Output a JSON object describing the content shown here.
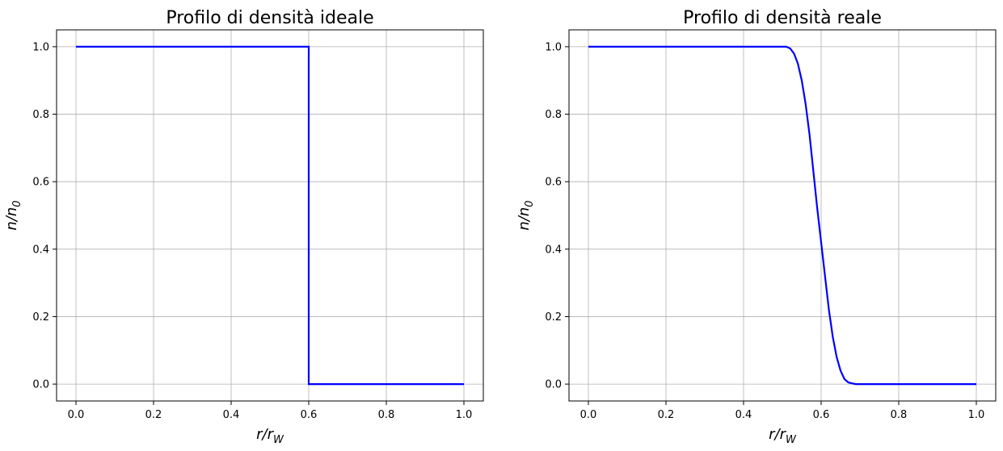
{
  "chart_data": [
    {
      "type": "line",
      "title": "Profilo di densità ideale",
      "xlabel": {
        "base": "r/r",
        "sub": "W"
      },
      "ylabel": {
        "base": "n/n",
        "sub": "0"
      },
      "xlim": [
        -0.05,
        1.05
      ],
      "ylim": [
        -0.05,
        1.05
      ],
      "xticks": [
        0.0,
        0.2,
        0.4,
        0.6,
        0.8,
        1.0
      ],
      "yticks": [
        0.0,
        0.2,
        0.4,
        0.6,
        0.8,
        1.0
      ],
      "xtick_labels": [
        "0.0",
        "0.2",
        "0.4",
        "0.6",
        "0.8",
        "1.0"
      ],
      "ytick_labels": [
        "0.0",
        "0.2",
        "0.4",
        "0.6",
        "0.8",
        "1.0"
      ],
      "grid": true,
      "color": "#0000ff",
      "series": [
        {
          "x": [
            0.0,
            0.6,
            0.6,
            1.0
          ],
          "y": [
            1.0,
            1.0,
            0.0,
            0.0
          ]
        }
      ]
    },
    {
      "type": "line",
      "title": "Profilo di densità reale",
      "xlabel": {
        "base": "r/r",
        "sub": "W"
      },
      "ylabel": {
        "base": "n/n",
        "sub": "0"
      },
      "xlim": [
        -0.05,
        1.05
      ],
      "ylim": [
        -0.05,
        1.05
      ],
      "xticks": [
        0.0,
        0.2,
        0.4,
        0.6,
        0.8,
        1.0
      ],
      "yticks": [
        0.0,
        0.2,
        0.4,
        0.6,
        0.8,
        1.0
      ],
      "xtick_labels": [
        "0.0",
        "0.2",
        "0.4",
        "0.6",
        "0.8",
        "1.0"
      ],
      "ytick_labels": [
        "0.0",
        "0.2",
        "0.4",
        "0.6",
        "0.8",
        "1.0"
      ],
      "grid": true,
      "color": "#0000ff",
      "series": [
        {
          "x": [
            0.0,
            0.1,
            0.2,
            0.3,
            0.4,
            0.5,
            0.51,
            0.52,
            0.53,
            0.54,
            0.55,
            0.56,
            0.57,
            0.58,
            0.59,
            0.6,
            0.61,
            0.62,
            0.63,
            0.64,
            0.65,
            0.66,
            0.67,
            0.68,
            0.69,
            0.7,
            0.8,
            0.9,
            1.0
          ],
          "y": [
            1.0,
            1.0,
            1.0,
            1.0,
            1.0,
            1.0,
            1.0,
            0.995,
            0.98,
            0.95,
            0.9,
            0.83,
            0.74,
            0.63,
            0.52,
            0.42,
            0.32,
            0.22,
            0.14,
            0.08,
            0.04,
            0.015,
            0.005,
            0.002,
            0.0,
            0.0,
            0.0,
            0.0,
            0.0
          ]
        }
      ]
    }
  ]
}
